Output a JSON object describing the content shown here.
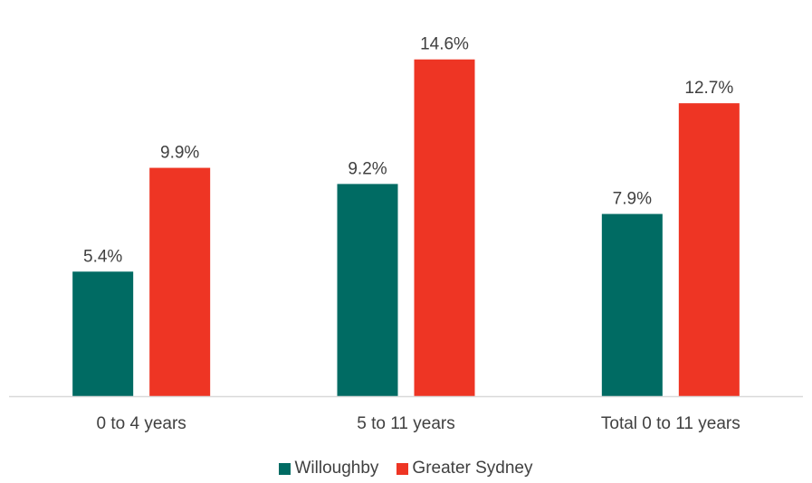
{
  "chart_data": {
    "type": "bar",
    "categories": [
      "0 to 4 years",
      "5 to 11 years",
      "Total 0 to 11 years"
    ],
    "series": [
      {
        "name": "Willoughby",
        "values": [
          5.4,
          9.2,
          7.9
        ],
        "labels": [
          "5.4%",
          "9.2%",
          "7.9%"
        ],
        "color": "#006b63"
      },
      {
        "name": "Greater Sydney",
        "values": [
          9.9,
          14.6,
          12.7
        ],
        "labels": [
          "9.9%",
          "14.6%",
          "12.7%"
        ],
        "color": "#ee3524"
      }
    ],
    "ylim": [
      0,
      16
    ],
    "grid": false,
    "legend_position": "bottom"
  }
}
